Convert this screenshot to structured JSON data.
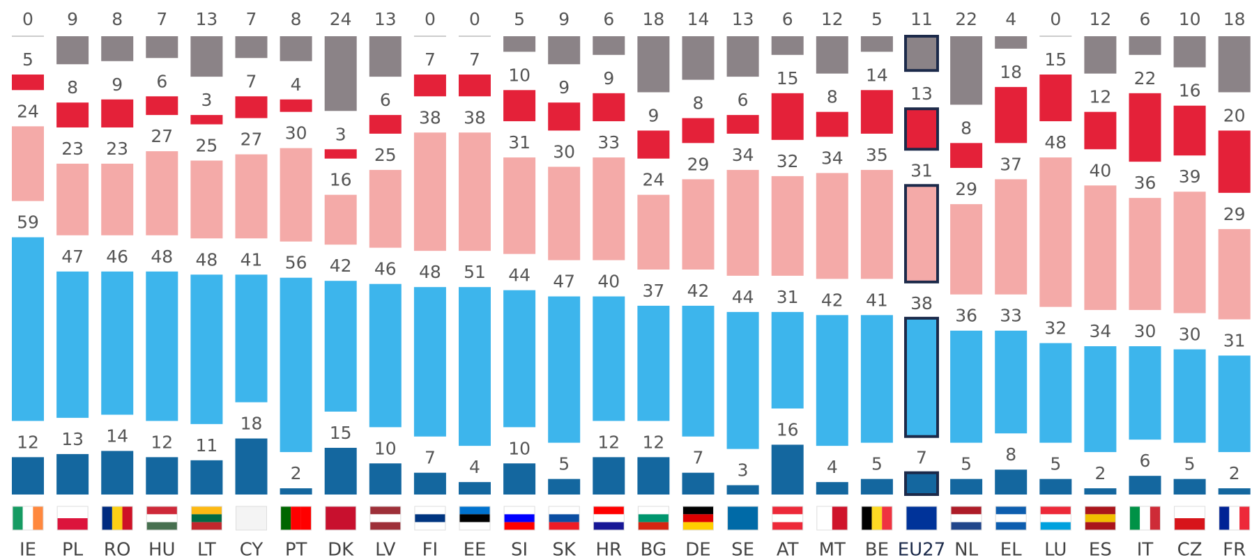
{
  "chart_data": {
    "type": "stacked_bar",
    "categories": [
      "IE",
      "PL",
      "RO",
      "HU",
      "LT",
      "CY",
      "PT",
      "DK",
      "LV",
      "FI",
      "EE",
      "SI",
      "SK",
      "HR",
      "BG",
      "DE",
      "SE",
      "AT",
      "MT",
      "BE",
      "EU27",
      "NL",
      "EL",
      "LU",
      "ES",
      "IT",
      "CZ",
      "FR"
    ],
    "highlight_index": 20,
    "series": [
      {
        "color": "#14679f",
        "values": [
          12,
          13,
          14,
          12,
          11,
          18,
          2,
          15,
          10,
          7,
          4,
          10,
          5,
          12,
          12,
          7,
          3,
          16,
          4,
          5,
          7,
          5,
          8,
          5,
          2,
          6,
          5,
          2
        ]
      },
      {
        "color": "#3db5ec",
        "values": [
          59,
          47,
          46,
          48,
          48,
          41,
          56,
          42,
          46,
          48,
          51,
          44,
          47,
          40,
          37,
          42,
          44,
          31,
          42,
          41,
          38,
          36,
          33,
          32,
          34,
          30,
          30,
          31
        ]
      },
      {
        "color": "#f4aaa8",
        "values": [
          24,
          23,
          23,
          27,
          25,
          27,
          30,
          16,
          25,
          38,
          38,
          31,
          30,
          33,
          24,
          29,
          34,
          32,
          34,
          35,
          31,
          29,
          37,
          48,
          40,
          36,
          39,
          29
        ]
      },
      {
        "color": "#e42139",
        "values": [
          5,
          8,
          9,
          6,
          3,
          7,
          4,
          3,
          6,
          7,
          7,
          10,
          9,
          9,
          9,
          8,
          6,
          15,
          8,
          14,
          13,
          8,
          18,
          15,
          12,
          22,
          16,
          20
        ]
      },
      {
        "color": "#8b8387",
        "values": [
          0,
          9,
          8,
          7,
          13,
          7,
          8,
          24,
          13,
          0,
          0,
          5,
          9,
          6,
          18,
          14,
          13,
          6,
          12,
          5,
          11,
          22,
          4,
          0,
          12,
          6,
          10,
          18
        ]
      }
    ]
  }
}
